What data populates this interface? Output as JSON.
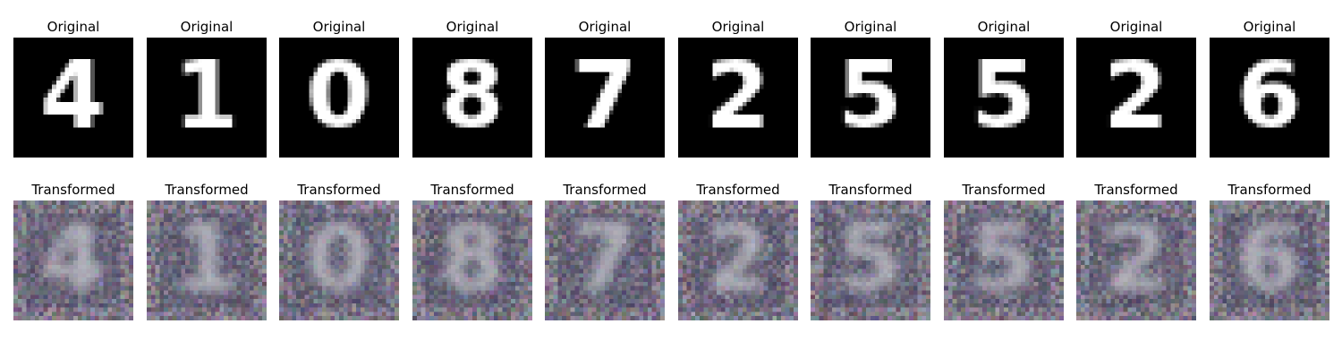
{
  "rows": [
    {
      "label": "Original",
      "style": "mnist",
      "digits": [
        "4",
        "1",
        "0",
        "8",
        "7",
        "2",
        "5",
        "5",
        "2",
        "6"
      ]
    },
    {
      "label": "Transformed",
      "style": "noisy",
      "digits": [
        "4",
        "1",
        "0",
        "8",
        "7",
        "2",
        "5",
        "5",
        "2",
        "6"
      ]
    }
  ],
  "colors": {
    "background": "#ffffff",
    "digit_bg": "#000000",
    "digit_fg": "#ffffff",
    "noisy_bg": "#6e6a78"
  }
}
